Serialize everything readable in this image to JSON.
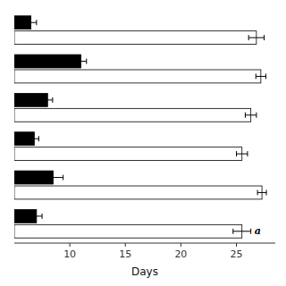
{
  "chart_data": {
    "type": "bar",
    "orientation": "horizontal",
    "xlabel": "Days",
    "categories": [
      null,
      null,
      null,
      null,
      null,
      null
    ],
    "series": [
      {
        "color": "#000000",
        "values": [
          6.5,
          11.0,
          8.0,
          6.8,
          8.5,
          7.0
        ],
        "errors": [
          0.5,
          0.5,
          0.45,
          0.4,
          0.9,
          0.5
        ]
      },
      {
        "color": "#ffffff",
        "values": [
          26.8,
          27.2,
          26.3,
          25.5,
          27.3,
          25.5
        ],
        "errors": [
          0.7,
          0.45,
          0.5,
          0.5,
          0.4,
          0.8
        ]
      }
    ],
    "xlim": [
      5,
      28.5
    ],
    "xticks": [
      10,
      15,
      20,
      25
    ],
    "grid": false,
    "tick_labels": "x",
    "annotations": [
      {
        "text": "a",
        "series": 1,
        "index": 5
      }
    ]
  }
}
